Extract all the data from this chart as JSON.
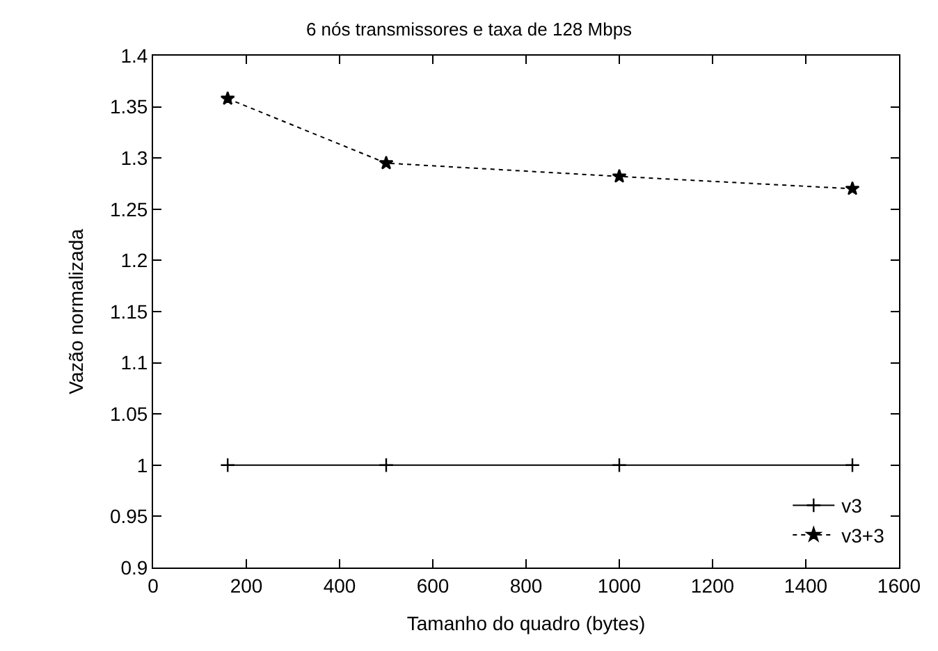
{
  "chart_data": {
    "type": "line",
    "title": "6 nós transmissores e taxa de 128 Mbps",
    "xlabel": "Tamanho do quadro (bytes)",
    "ylabel": "Vazão normalizada",
    "x": [
      160,
      500,
      1000,
      1500
    ],
    "series": [
      {
        "name": "v3",
        "color": "#000000",
        "values": [
          1,
          1,
          1,
          1
        ],
        "marker": "cross",
        "line_style": "solid"
      },
      {
        "name": "v3+3",
        "color": "#000000",
        "values": [
          1.358,
          1.295,
          1.282,
          1.27
        ],
        "marker": "star",
        "line_style": "dotted"
      }
    ],
    "xlim": [
      0,
      1600
    ],
    "xticks": [
      0,
      200,
      400,
      600,
      800,
      1000,
      1200,
      1400,
      1600
    ],
    "ylim": [
      0.9,
      1.4
    ],
    "yticks": [
      0.9,
      0.95,
      1,
      1.05,
      1.1,
      1.15,
      1.2,
      1.25,
      1.3,
      1.35,
      1.4
    ],
    "grid": false,
    "legend": "bottom right"
  }
}
